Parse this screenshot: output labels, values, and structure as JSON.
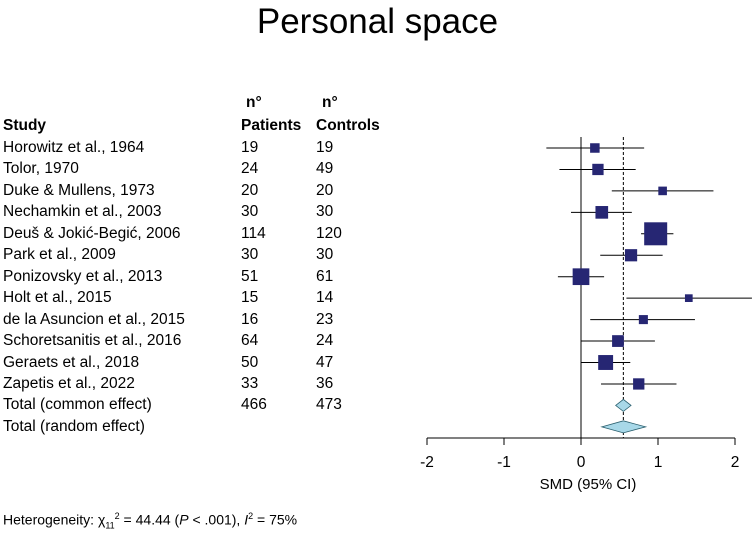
{
  "chart_data": {
    "type": "forest",
    "title": "Personal space",
    "columns": {
      "study": "Study",
      "patients": [
        "n°",
        "Patients"
      ],
      "controls": [
        "n°",
        "Controls"
      ]
    },
    "xlabel": "SMD (95% CI)",
    "xlim": [
      -2,
      2
    ],
    "xticks": [
      "-2",
      "-1",
      "0",
      "1",
      "2"
    ],
    "reference_line": 0,
    "pooled_line": 0.55,
    "studies": [
      {
        "name": "Horowitz et al., 1964",
        "patients": "19",
        "controls": "19",
        "smd": 0.18,
        "lo": -0.45,
        "hi": 0.82,
        "weight": 0.5
      },
      {
        "name": "Tolor, 1970",
        "patients": "24",
        "controls": "49",
        "smd": 0.22,
        "lo": -0.28,
        "hi": 0.71,
        "weight": 0.7
      },
      {
        "name": "Duke & Mullens, 1973",
        "patients": "20",
        "controls": "20",
        "smd": 1.06,
        "lo": 0.4,
        "hi": 1.72,
        "weight": 0.4
      },
      {
        "name": "Nechamkin et al., 2003",
        "patients": "30",
        "controls": "30",
        "smd": 0.27,
        "lo": -0.13,
        "hi": 0.66,
        "weight": 0.85
      },
      {
        "name": "Deuš & Jokić-Begić, 2006",
        "patients": "114",
        "controls": "120",
        "smd": 0.97,
        "lo": 0.78,
        "hi": 1.2,
        "weight": 2.0
      },
      {
        "name": "Park et al., 2009",
        "patients": "30",
        "controls": "30",
        "smd": 0.65,
        "lo": 0.25,
        "hi": 1.06,
        "weight": 0.8
      },
      {
        "name": "Ponizovsky et al., 2013",
        "patients": "51",
        "controls": "61",
        "smd": 0.0,
        "lo": -0.3,
        "hi": 0.3,
        "weight": 1.3
      },
      {
        "name": "Holt et al., 2015",
        "patients": "15",
        "controls": "14",
        "smd": 1.4,
        "lo": 0.59,
        "hi": 2.22,
        "weight": 0.3
      },
      {
        "name": "de la Asuncion et al., 2015",
        "patients": "16",
        "controls": "23",
        "smd": 0.81,
        "lo": 0.12,
        "hi": 1.48,
        "weight": 0.45
      },
      {
        "name": "Schoretsanitis et al., 2016",
        "patients": "64",
        "controls": "24",
        "smd": 0.48,
        "lo": 0.0,
        "hi": 0.96,
        "weight": 0.75
      },
      {
        "name": "Geraets et al.,  2018",
        "patients": "50",
        "controls": "47",
        "smd": 0.32,
        "lo": 0.0,
        "hi": 0.64,
        "weight": 1.1
      },
      {
        "name": "Zapetis et al., 2022",
        "patients": "33",
        "controls": "36",
        "smd": 0.75,
        "lo": 0.26,
        "hi": 1.24,
        "weight": 0.7
      }
    ],
    "totals": [
      {
        "name": "Total (common effect)",
        "patients": "466",
        "controls": "473",
        "est": 0.55,
        "lo": 0.45,
        "hi": 0.65
      },
      {
        "name": "Total (random effect)",
        "patients": "",
        "controls": "",
        "est": 0.55,
        "lo": 0.27,
        "hi": 0.84
      }
    ],
    "box_color": "#262673",
    "diamond_color": "#a8d8e8",
    "heterogeneity": {
      "prefix": "Heterogeneity: ",
      "chi": "χ",
      "chi_sub": "11",
      "chi_sup": "2",
      "mid": " = 44.44 (",
      "p": "P",
      "p_text": " < .001), ",
      "i": "I",
      "i_sup": "2",
      "i_text": " = 75%"
    }
  }
}
